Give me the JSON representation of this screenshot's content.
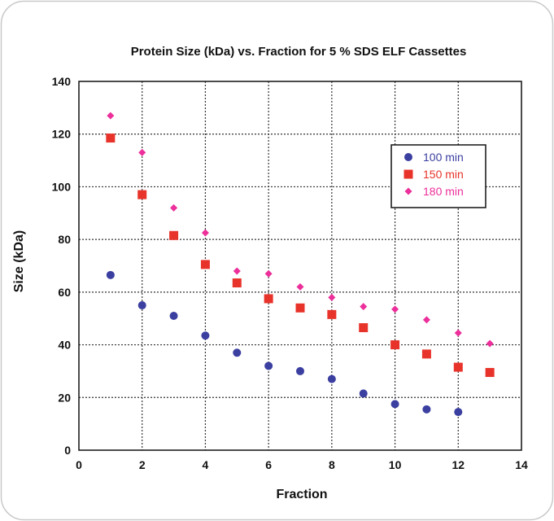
{
  "colors": {
    "background": "#ffffff",
    "frame_border": "#c9c9c9",
    "grid": "#333333",
    "axis": "#111111",
    "series_100": "#3b3fa0",
    "series_150": "#e8332a",
    "series_180": "#ec2f9a"
  },
  "chart_data": {
    "type": "scatter",
    "title": "Protein Size (kDa) vs. Fraction for 5 % SDS ELF Cassettes",
    "xlabel": "Fraction",
    "ylabel": "Size (kDa)",
    "xlim": [
      0,
      14
    ],
    "ylim": [
      0,
      140
    ],
    "xticks": [
      0,
      2,
      4,
      6,
      8,
      10,
      12,
      14
    ],
    "yticks": [
      0,
      20,
      40,
      60,
      80,
      100,
      120,
      140
    ],
    "grid": true,
    "grid_style": "dotted",
    "legend_position": "top-right",
    "series": [
      {
        "name": "100 min",
        "color": "#3b3fa0",
        "marker": "circle",
        "x": [
          1,
          2,
          3,
          4,
          5,
          6,
          7,
          8,
          9,
          10,
          11,
          12
        ],
        "y": [
          66.5,
          55,
          51,
          43.5,
          37,
          32,
          30,
          27,
          21.5,
          17.5,
          15.5,
          14.5
        ]
      },
      {
        "name": "150 min",
        "color": "#e8332a",
        "marker": "square",
        "x": [
          1,
          2,
          3,
          4,
          5,
          6,
          7,
          8,
          9,
          10,
          11,
          12,
          13
        ],
        "y": [
          118.5,
          97,
          81.5,
          70.5,
          63.5,
          57.5,
          54,
          51.5,
          46.5,
          40,
          36.5,
          31.5,
          29.5
        ]
      },
      {
        "name": "180 min",
        "color": "#ec2f9a",
        "marker": "diamond",
        "x": [
          1,
          2,
          3,
          4,
          5,
          6,
          7,
          8,
          9,
          10,
          11,
          12,
          13
        ],
        "y": [
          127,
          113,
          92,
          82.5,
          68,
          67,
          62,
          58,
          54.5,
          53.5,
          49.5,
          44.5,
          40.5
        ]
      }
    ]
  }
}
